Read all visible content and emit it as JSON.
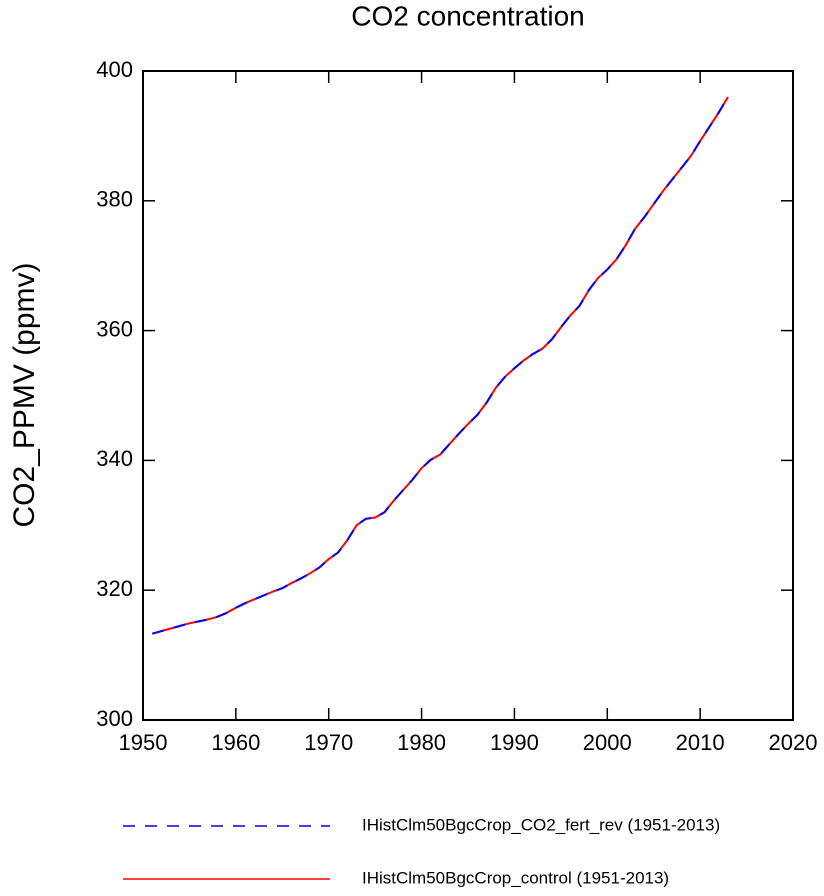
{
  "chart_data": {
    "type": "line",
    "title": "CO2 concentration",
    "y_label": "CO2_PPMV  (ppmv)",
    "x": [
      1951,
      1952,
      1953,
      1954,
      1955,
      1956,
      1957,
      1958,
      1959,
      1960,
      1961,
      1962,
      1963,
      1964,
      1965,
      1966,
      1967,
      1968,
      1969,
      1970,
      1971,
      1972,
      1973,
      1974,
      1975,
      1976,
      1977,
      1978,
      1979,
      1980,
      1981,
      1982,
      1983,
      1984,
      1985,
      1986,
      1987,
      1988,
      1989,
      1990,
      1991,
      1992,
      1993,
      1994,
      1995,
      1996,
      1997,
      1998,
      1999,
      2000,
      2001,
      2002,
      2003,
      2004,
      2005,
      2006,
      2007,
      2008,
      2009,
      2010,
      2011,
      2012,
      2013
    ],
    "series": [
      {
        "name": "IHistClm50BgcCrop_control (1951-2013)",
        "color": "#ff0000",
        "dash": "solid",
        "values": [
          313.3,
          313.7,
          314.1,
          314.5,
          314.9,
          315.2,
          315.5,
          315.9,
          316.5,
          317.3,
          318.0,
          318.6,
          319.2,
          319.8,
          320.3,
          321.1,
          321.8,
          322.6,
          323.5,
          324.8,
          325.8,
          327.7,
          330.0,
          331.0,
          331.2,
          332.0,
          333.8,
          335.4,
          337.0,
          338.8,
          340.1,
          340.9,
          342.5,
          344.1,
          345.6,
          347.0,
          348.9,
          351.2,
          352.9,
          354.2,
          355.4,
          356.4,
          357.2,
          358.6,
          360.5,
          362.3,
          363.8,
          366.2,
          368.1,
          369.4,
          371.0,
          373.2,
          375.7,
          377.5,
          379.5,
          381.5,
          383.3,
          385.1,
          386.9,
          389.2,
          391.4,
          393.6,
          396.0
        ]
      },
      {
        "name": "IHistClm50BgcCrop_CO2_fert_rev (1951-2013)",
        "color": "#0000ff",
        "dash": "dashed",
        "values": [
          313.3,
          313.7,
          314.1,
          314.5,
          314.9,
          315.2,
          315.5,
          315.9,
          316.5,
          317.3,
          318.0,
          318.6,
          319.2,
          319.8,
          320.3,
          321.1,
          321.8,
          322.6,
          323.5,
          324.8,
          325.8,
          327.7,
          330.0,
          331.0,
          331.2,
          332.0,
          333.8,
          335.4,
          337.0,
          338.8,
          340.1,
          340.9,
          342.5,
          344.1,
          345.6,
          347.0,
          348.9,
          351.2,
          352.9,
          354.2,
          355.4,
          356.4,
          357.2,
          358.6,
          360.5,
          362.3,
          363.8,
          366.2,
          368.1,
          369.4,
          371.0,
          373.2,
          375.7,
          377.5,
          379.5,
          381.5,
          383.3,
          385.1,
          386.9,
          389.2,
          391.4,
          393.6,
          396.0
        ]
      }
    ],
    "xlim": [
      1950,
      2020
    ],
    "xticks": [
      1950,
      1960,
      1970,
      1980,
      1990,
      2000,
      2010,
      2020
    ],
    "ylim": [
      300,
      400
    ],
    "yticks": [
      300,
      320,
      340,
      360,
      380,
      400
    ],
    "grid": false
  }
}
